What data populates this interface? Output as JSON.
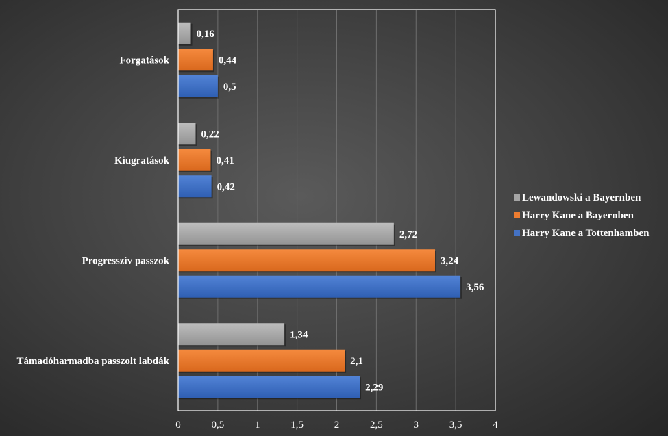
{
  "chart_data": {
    "type": "bar",
    "orientation": "horizontal",
    "title": "",
    "xlabel": "",
    "ylabel": "",
    "xlim": [
      0,
      4
    ],
    "x_ticks": [
      "0",
      "0,5",
      "1",
      "1,5",
      "2",
      "2,5",
      "3",
      "3,5",
      "4"
    ],
    "grid": "vertical",
    "legend_position": "right",
    "categories": [
      "Forgatások",
      "Kiugratások",
      "Progresszív passzok",
      "Támadóharmadba passzolt labdák"
    ],
    "series": [
      {
        "name": "Lewandowski a Bayernben",
        "color": "#a5a5a5",
        "values": [
          0.16,
          0.22,
          2.72,
          1.34
        ],
        "labels": [
          "0,16",
          "0,22",
          "2,72",
          "1,34"
        ]
      },
      {
        "name": "Harry Kane a Bayernben",
        "color": "#ed7d31",
        "values": [
          0.44,
          0.41,
          3.24,
          2.1
        ],
        "labels": [
          "0,44",
          "0,41",
          "3,24",
          "2,1"
        ]
      },
      {
        "name": "Harry Kane a Tottenhamben",
        "color": "#4472c4",
        "values": [
          0.5,
          0.42,
          3.56,
          2.29
        ],
        "labels": [
          "0,5",
          "0,42",
          "3,56",
          "2,29"
        ]
      }
    ]
  }
}
